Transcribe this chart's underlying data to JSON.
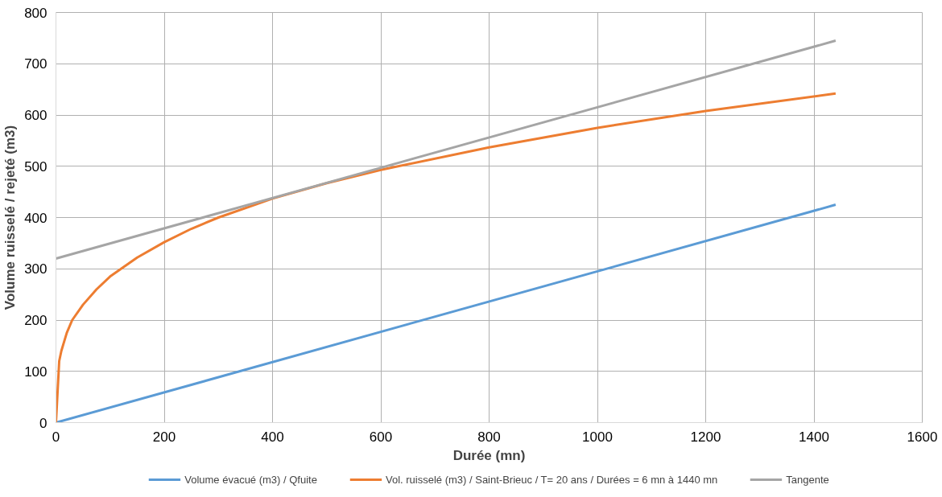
{
  "chart_data": {
    "type": "line",
    "xlabel": "Durée (mn)",
    "ylabel": "Volume ruisselé / rejeté (m3)",
    "xlim": [
      0,
      1600
    ],
    "xticks": [
      0,
      200,
      400,
      600,
      800,
      1000,
      1200,
      1400,
      1600
    ],
    "ylim": [
      0,
      800
    ],
    "yticks": [
      0,
      100,
      200,
      300,
      400,
      500,
      600,
      700,
      800
    ],
    "grid": true,
    "legend": "bottom",
    "marker": "none",
    "line_style": "solid",
    "series": [
      {
        "name": "Volume évacué (m3) / Qfuite",
        "color": "#5b9bd5",
        "x": [
          0,
          1440
        ],
        "values": [
          0,
          425
        ]
      },
      {
        "name": "Vol. ruisselé (m3) / Saint-Brieuc / T= 20 ans / Durées = 6 mn à 1440 mn",
        "color": "#ed7d31",
        "x": [
          0,
          6,
          10,
          20,
          30,
          50,
          75,
          100,
          150,
          200,
          250,
          300,
          400,
          500,
          600,
          800,
          1000,
          1200,
          1440
        ],
        "values": [
          0,
          120,
          140,
          175,
          200,
          230,
          260,
          285,
          322,
          352,
          378,
          400,
          437,
          467,
          493,
          537,
          575,
          608,
          642
        ]
      },
      {
        "name": "Tangente",
        "color": "#a5a5a5",
        "x": [
          0,
          1440
        ],
        "values": [
          320,
          745
        ]
      }
    ]
  }
}
